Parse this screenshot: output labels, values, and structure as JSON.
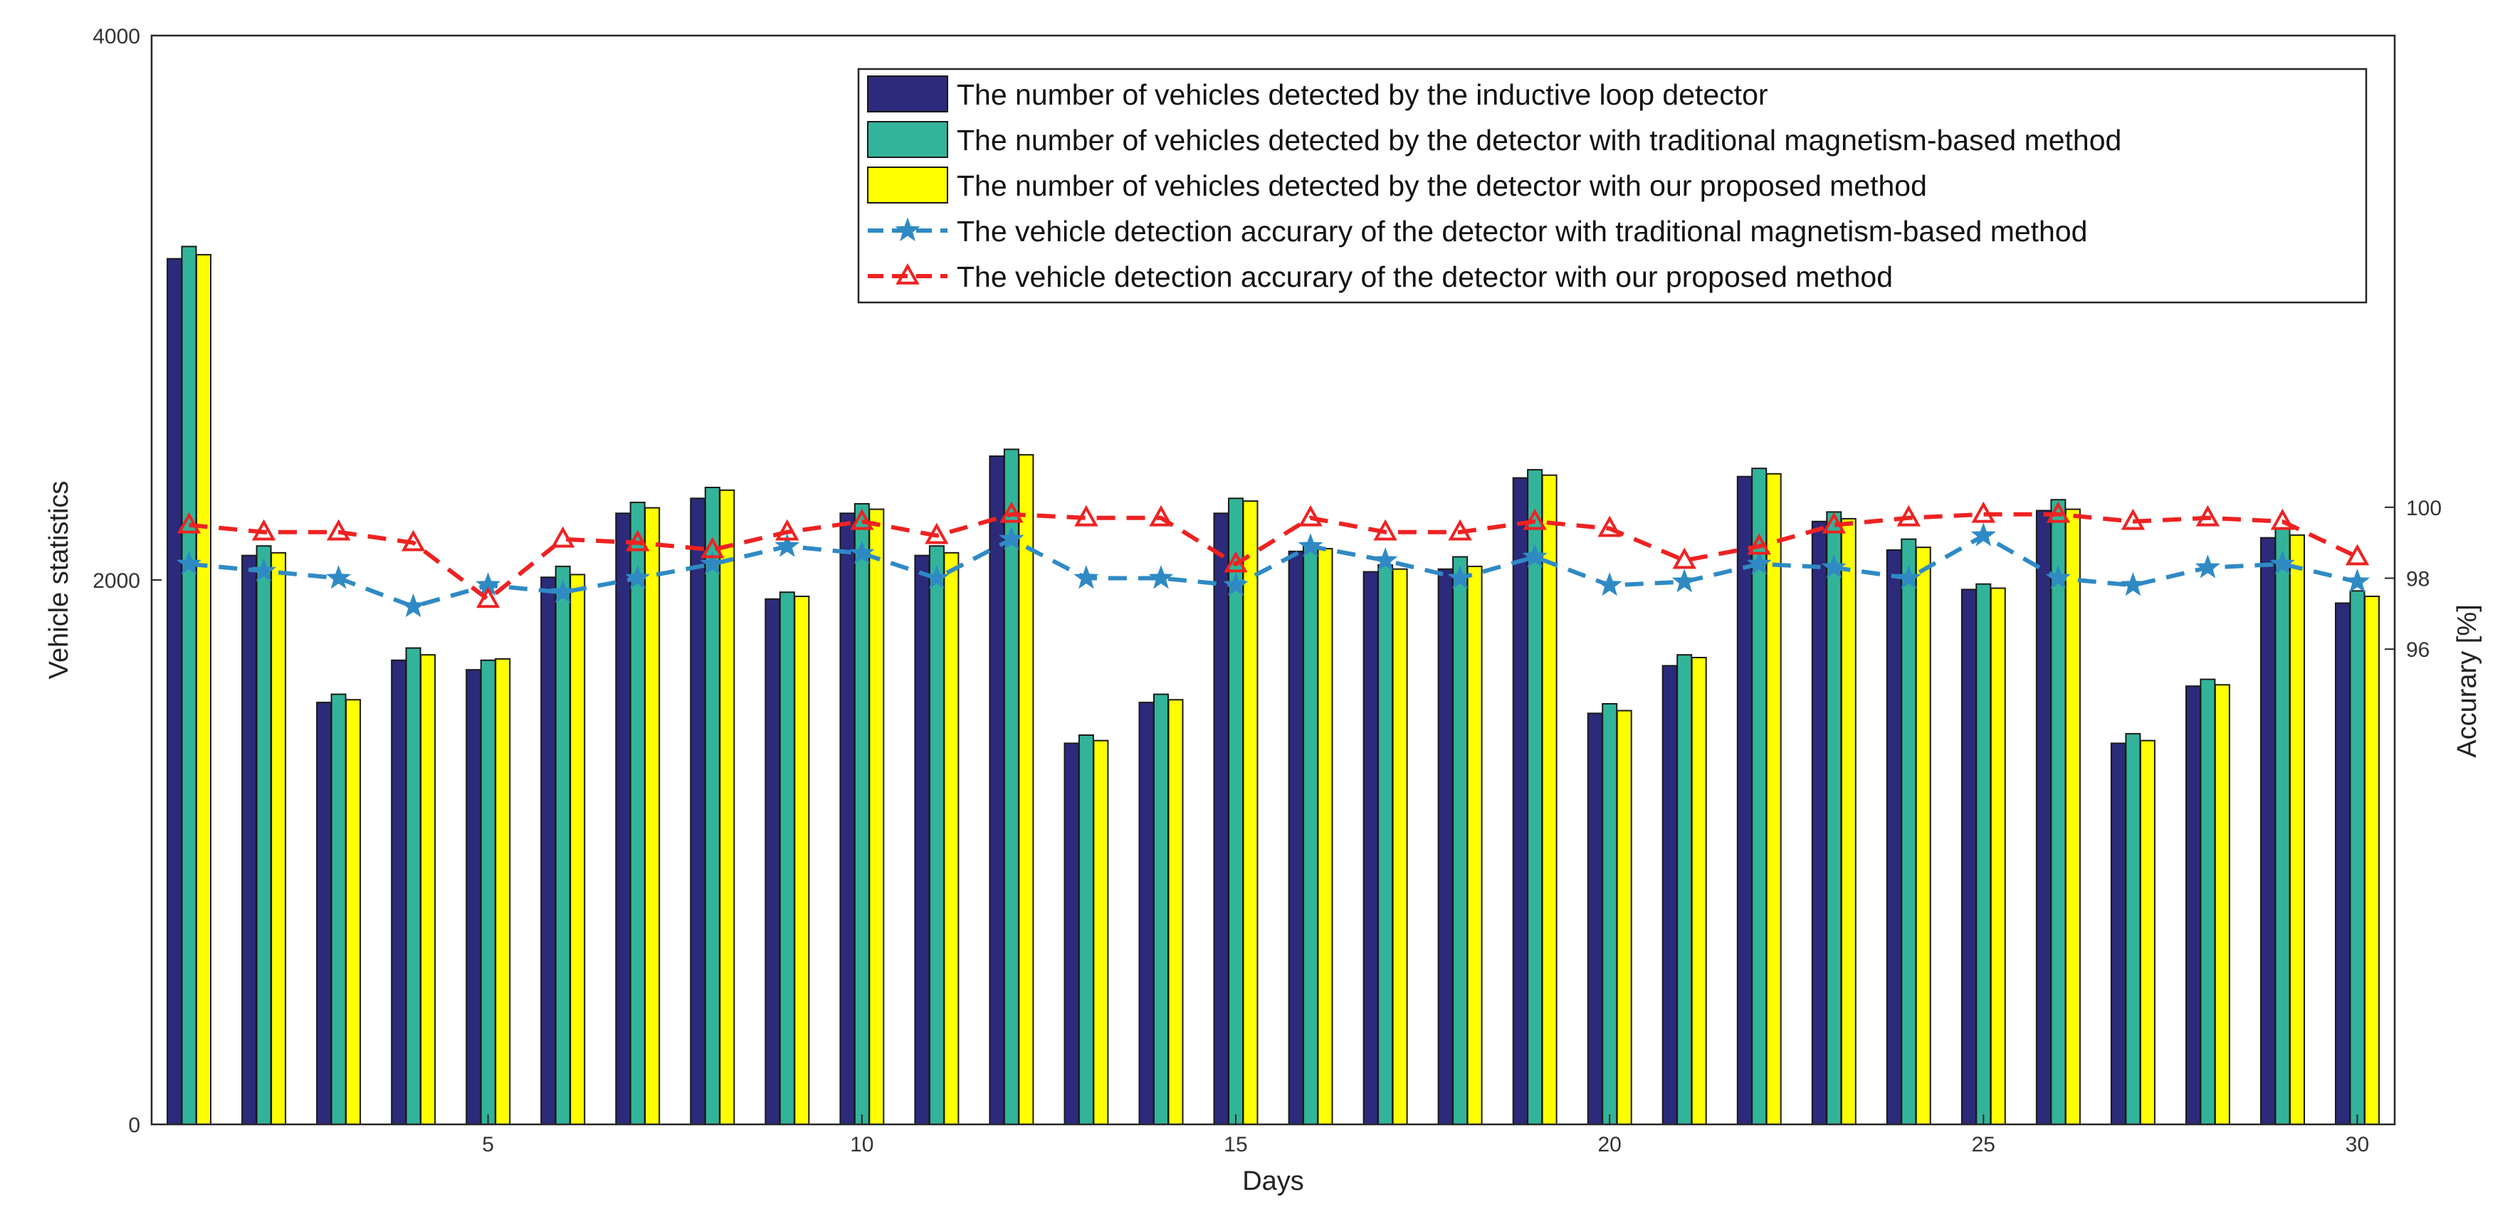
{
  "chart_data": {
    "type": "bar",
    "title": "",
    "xlabel": "Days",
    "ylabel": "Vehicle statistics",
    "y2label": "Accurary [%]",
    "xlim": [
      0.5,
      30.5
    ],
    "ylim": [
      0,
      4000
    ],
    "y2lim": [
      82.6,
      113.3
    ],
    "x_ticks": [
      5,
      10,
      15,
      20,
      25,
      30
    ],
    "y_ticks": [
      0,
      2000,
      4000
    ],
    "y2_ticks": [
      96,
      98,
      100
    ],
    "legend_position": "top-right",
    "days": [
      1,
      2,
      3,
      4,
      5,
      6,
      7,
      8,
      9,
      10,
      11,
      12,
      13,
      14,
      15,
      16,
      17,
      18,
      19,
      20,
      21,
      22,
      23,
      24,
      25,
      26,
      27,
      28,
      29,
      30
    ],
    "series": [
      {
        "name": "The number of vehicles detected by the inductive loop detector",
        "kind": "bar",
        "axis": "left",
        "color": "#2c2a7a",
        "values": [
          3180,
          2090,
          1550,
          1705,
          1670,
          2010,
          2245,
          2300,
          1930,
          2245,
          2090,
          2455,
          1400,
          1550,
          2245,
          2105,
          2030,
          2040,
          2375,
          1510,
          1685,
          2380,
          2215,
          2110,
          1965,
          2255,
          1400,
          1610,
          2155,
          1915
        ]
      },
      {
        "name": "The number of vehicles detected by the detector with traditional magnetism-based method",
        "kind": "bar",
        "axis": "left",
        "color": "#32b49a",
        "values": [
          3225,
          2125,
          1580,
          1750,
          1705,
          2050,
          2285,
          2340,
          1955,
          2280,
          2125,
          2480,
          1430,
          1580,
          2300,
          2135,
          2055,
          2085,
          2405,
          1545,
          1725,
          2410,
          2250,
          2150,
          1985,
          2295,
          1435,
          1635,
          2190,
          1960
        ]
      },
      {
        "name": "The number of vehicles detected by the detector with our proposed method",
        "kind": "bar",
        "axis": "left",
        "color": "#ffff00",
        "values": [
          3195,
          2100,
          1560,
          1725,
          1710,
          2020,
          2265,
          2330,
          1940,
          2260,
          2100,
          2460,
          1410,
          1560,
          2290,
          2115,
          2040,
          2050,
          2385,
          1520,
          1715,
          2390,
          2225,
          2120,
          1970,
          2260,
          1410,
          1615,
          2165,
          1940
        ]
      },
      {
        "name": "The vehicle detection accurary of the detector with traditional magnetism-based method",
        "kind": "line",
        "axis": "right",
        "color": "#2f8ac4",
        "marker": "star",
        "values": [
          98.4,
          98.2,
          98.0,
          97.2,
          97.8,
          97.6,
          98.0,
          98.4,
          98.9,
          98.7,
          98.0,
          99.1,
          98.0,
          98.0,
          97.8,
          98.9,
          98.5,
          98.0,
          98.6,
          97.8,
          97.9,
          98.4,
          98.3,
          98.0,
          99.2,
          98.0,
          97.8,
          98.3,
          98.4,
          97.9
        ]
      },
      {
        "name": "The vehicle detection accurary of the detector with our proposed method",
        "kind": "line",
        "axis": "right",
        "color": "#ee2222",
        "marker": "triangle",
        "values": [
          99.5,
          99.3,
          99.3,
          99.0,
          97.4,
          99.1,
          99.0,
          98.8,
          99.3,
          99.6,
          99.2,
          99.8,
          99.7,
          99.7,
          98.4,
          99.7,
          99.3,
          99.3,
          99.6,
          99.4,
          98.5,
          98.9,
          99.5,
          99.7,
          99.8,
          99.8,
          99.6,
          99.7,
          99.6,
          98.6
        ]
      }
    ]
  }
}
